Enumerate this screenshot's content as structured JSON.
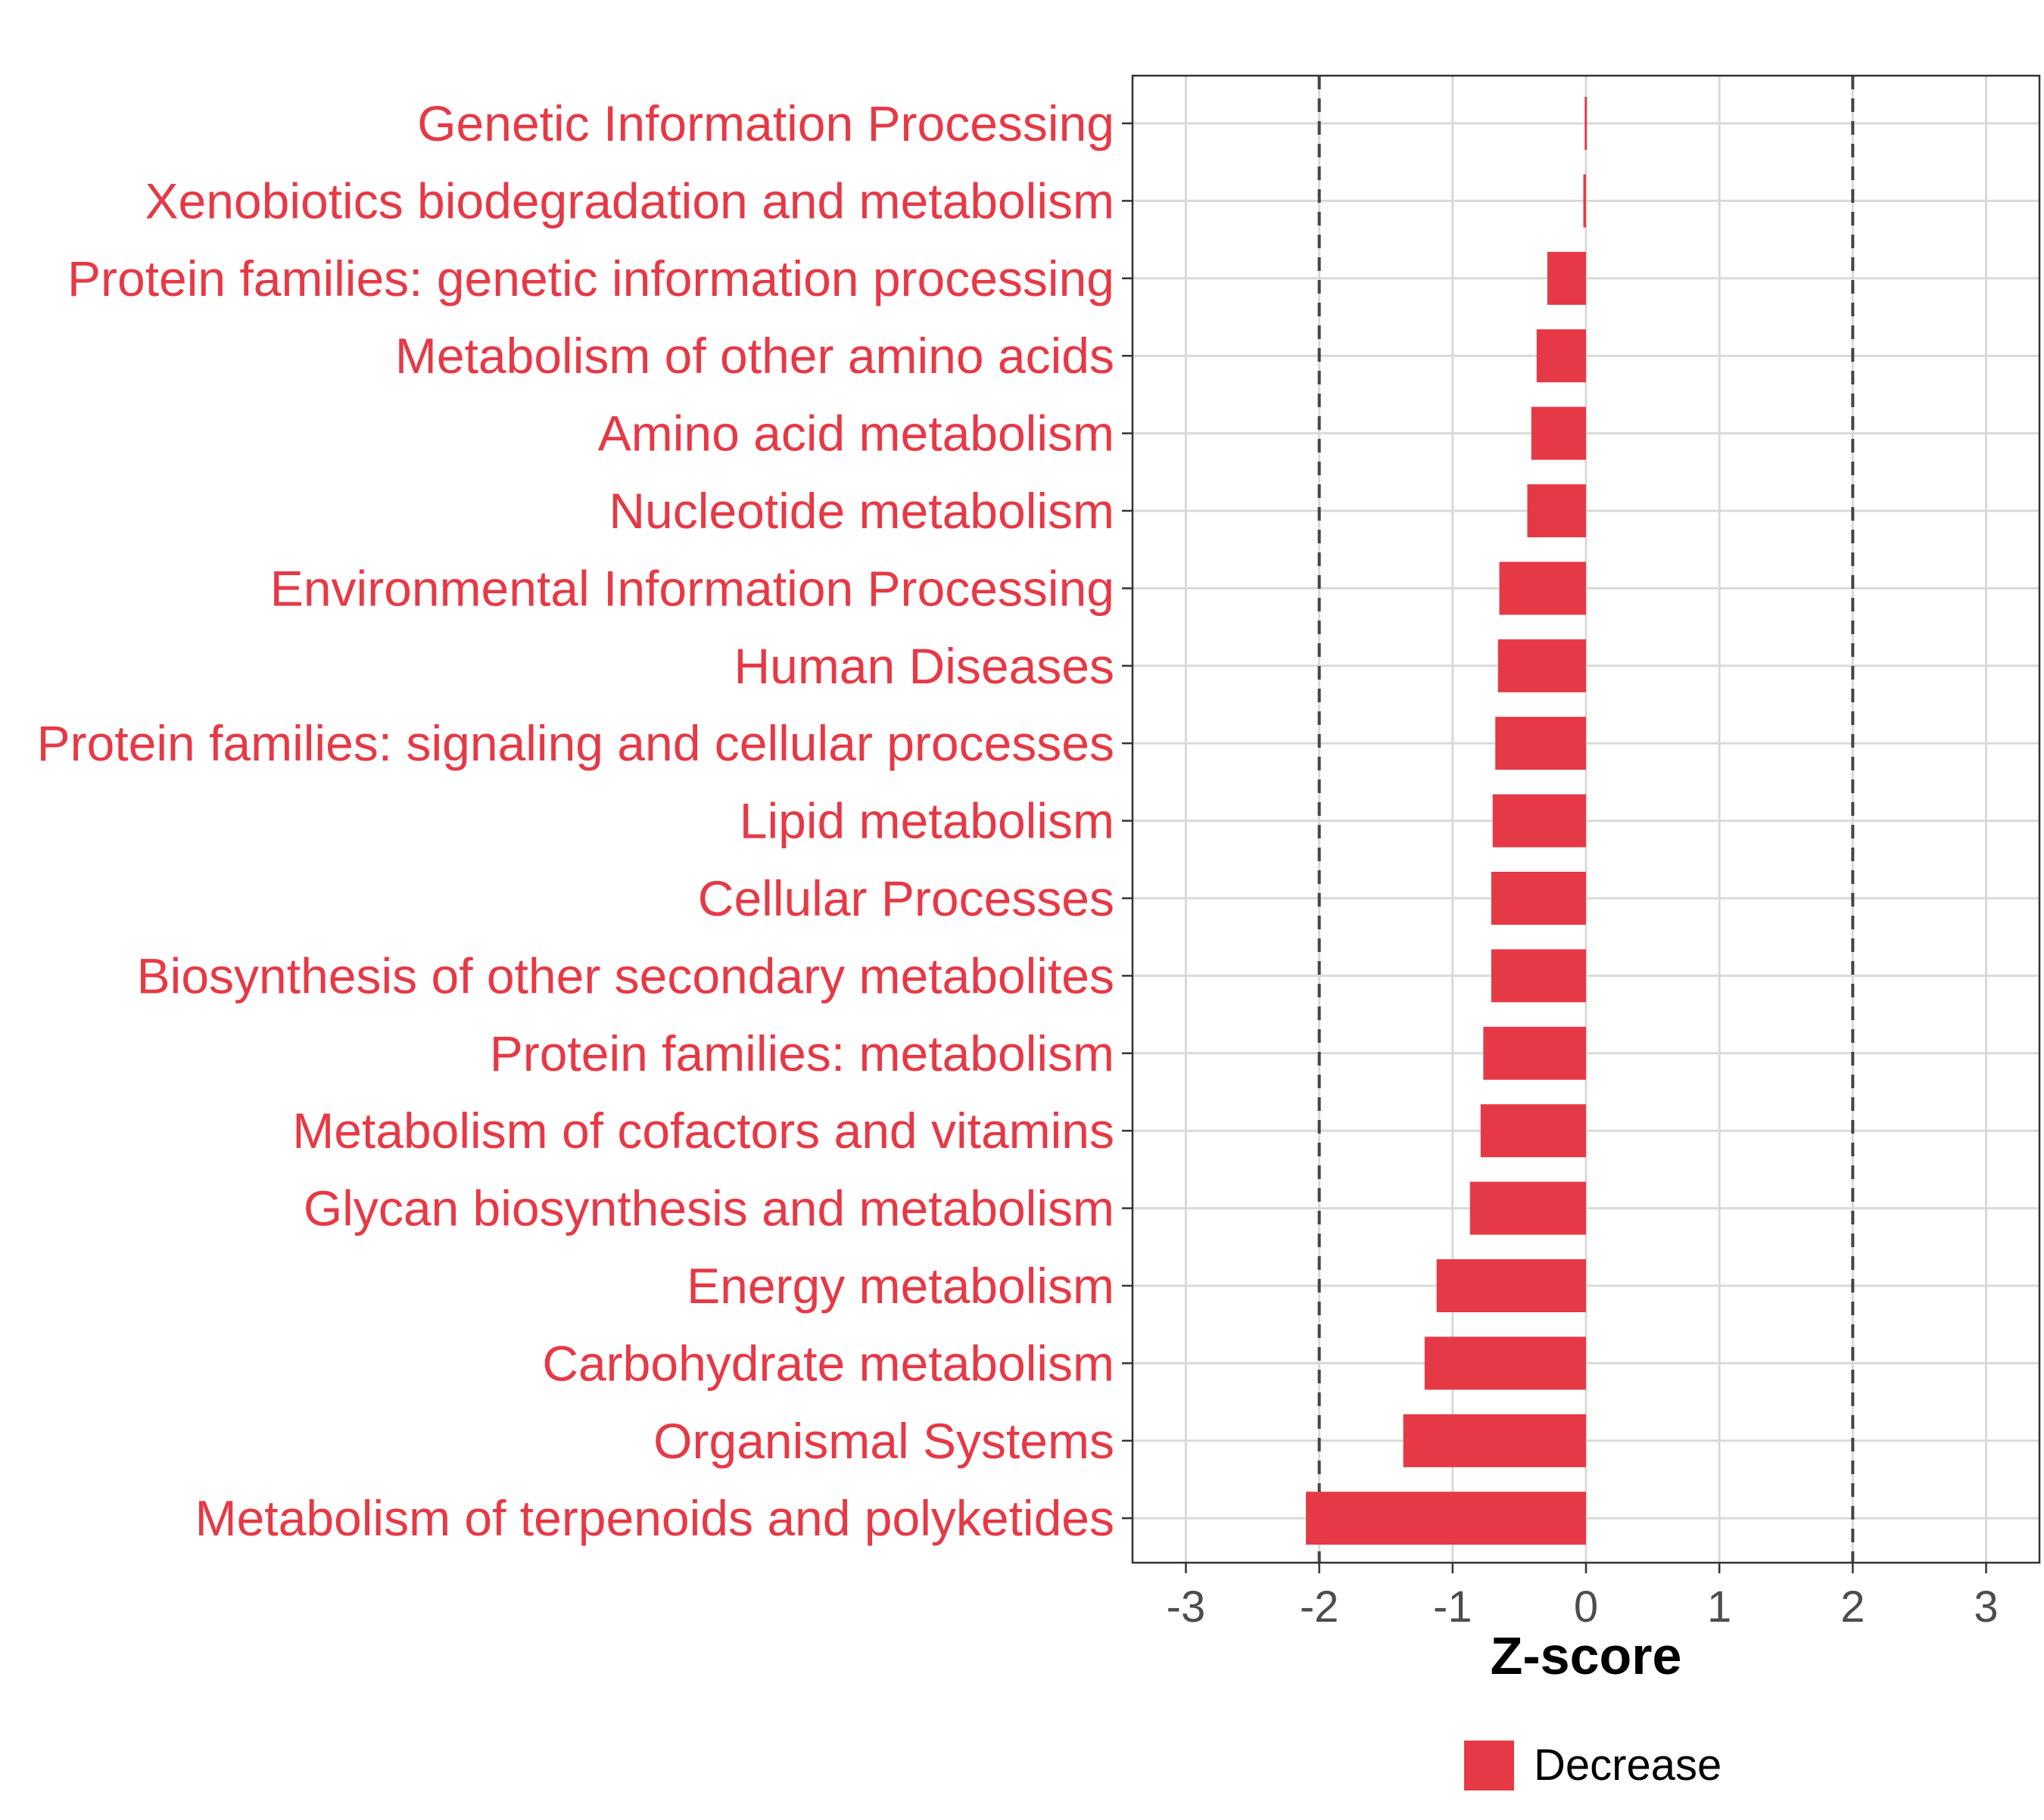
{
  "colors": {
    "bar": "#e63946",
    "label": "#e63946",
    "grid": "#d9d9d9",
    "axis": "#333333",
    "threshold": "#444444"
  },
  "chart_data": {
    "type": "bar",
    "orientation": "horizontal",
    "categories": [
      "Genetic Information Processing",
      "Xenobiotics biodegradation and metabolism",
      "Protein families: genetic information processing",
      "Metabolism of other amino acids",
      "Amino acid metabolism",
      "Nucleotide metabolism",
      "Environmental Information Processing",
      "Human Diseases",
      "Protein families: signaling and cellular processes",
      "Lipid metabolism",
      "Cellular Processes",
      "Biosynthesis of other secondary metabolites",
      "Protein families: metabolism",
      "Metabolism of cofactors and vitamins",
      "Glycan biosynthesis and metabolism",
      "Energy metabolism",
      "Carbohydrate metabolism",
      "Organismal Systems",
      "Metabolism of terpenoids and polyketides"
    ],
    "values": [
      -0.01,
      -0.02,
      -0.29,
      -0.37,
      -0.41,
      -0.44,
      -0.65,
      -0.66,
      -0.68,
      -0.7,
      -0.71,
      -0.71,
      -0.77,
      -0.79,
      -0.87,
      -1.12,
      -1.21,
      -1.37,
      -2.1
    ],
    "series": [
      {
        "name": "Decrease",
        "values": [
          -0.01,
          -0.02,
          -0.29,
          -0.37,
          -0.41,
          -0.44,
          -0.65,
          -0.66,
          -0.68,
          -0.7,
          -0.71,
          -0.71,
          -0.77,
          -0.79,
          -0.87,
          -1.12,
          -1.21,
          -1.37,
          -2.1
        ]
      }
    ],
    "xlabel": "Z-score",
    "ylabel": "",
    "xlim": [
      -3.4,
      3.4
    ],
    "xticks": [
      -3,
      -2,
      -1,
      0,
      1,
      2,
      3
    ],
    "xtick_labels": [
      "-3",
      "-2",
      "-1",
      "0",
      "1",
      "2",
      "3"
    ],
    "reference_lines": [
      -2,
      2
    ],
    "grid": true,
    "legend": {
      "position": "bottom",
      "entries": [
        "Decrease"
      ]
    }
  }
}
